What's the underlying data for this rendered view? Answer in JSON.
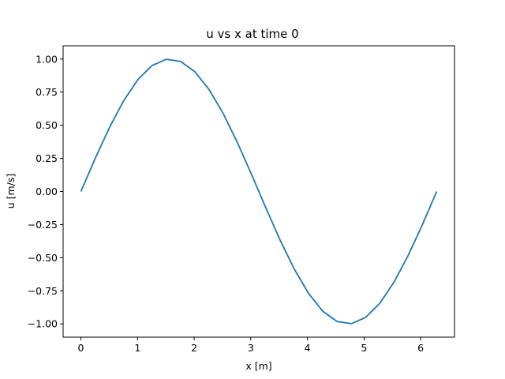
{
  "chart_data": {
    "type": "line",
    "title": "u vs x at time 0",
    "xlabel": "x [m]",
    "ylabel": "u [m/s]",
    "xlim": [
      -0.314,
      6.597
    ],
    "ylim": [
      -1.1,
      1.1
    ],
    "xticks": [
      0,
      1,
      2,
      3,
      4,
      5,
      6
    ],
    "xtick_labels": [
      "0",
      "1",
      "2",
      "3",
      "4",
      "5",
      "6"
    ],
    "yticks": [
      1.0,
      0.75,
      0.5,
      0.25,
      0.0,
      -0.25,
      -0.5,
      -0.75,
      -1.0
    ],
    "ytick_labels": [
      "1.00",
      "0.75",
      "0.50",
      "0.25",
      "0.00",
      "−0.25",
      "−0.50",
      "−0.75",
      "−1.00"
    ],
    "grid": false,
    "series": [
      {
        "color": "#1f77b4",
        "x": [
          0.0,
          0.2513,
          0.5027,
          0.754,
          1.0053,
          1.2566,
          1.508,
          1.7593,
          2.0106,
          2.2619,
          2.5133,
          2.7646,
          3.0159,
          3.2673,
          3.5186,
          3.7699,
          4.0212,
          4.2726,
          4.5239,
          4.7752,
          5.0265,
          5.2779,
          5.5292,
          5.7805,
          6.0319,
          6.2832
        ],
        "y": [
          0.0,
          0.2487,
          0.4818,
          0.6845,
          0.8443,
          0.9511,
          0.998,
          0.9823,
          0.9048,
          0.7705,
          0.5878,
          0.3681,
          0.1253,
          -0.1253,
          -0.3681,
          -0.5878,
          -0.7705,
          -0.9048,
          -0.9823,
          -0.998,
          -0.9511,
          -0.8443,
          -0.6845,
          -0.4818,
          -0.2487,
          0.0
        ]
      }
    ]
  }
}
